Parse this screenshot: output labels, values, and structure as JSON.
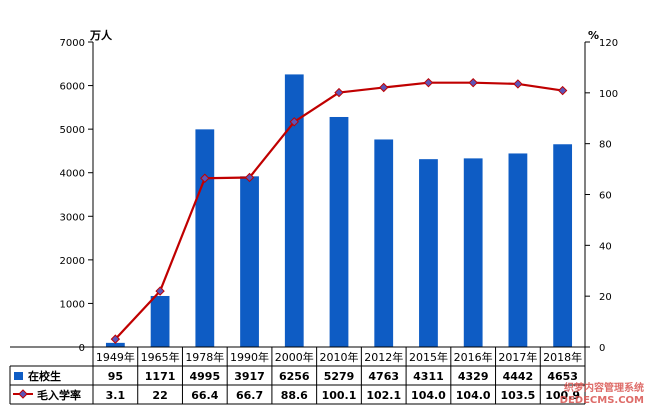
{
  "chart_data": {
    "type": "bar",
    "categories": [
      "1949年",
      "1965年",
      "1978年",
      "1990年",
      "2000年",
      "2010年",
      "2012年",
      "2015年",
      "2016年",
      "2017年",
      "2018年"
    ],
    "series": [
      {
        "name": "在校生",
        "type": "bar",
        "axis": "left",
        "values": [
          95,
          1171,
          4995,
          3917,
          6256,
          5279,
          4763,
          4311,
          4329,
          4442,
          4653
        ],
        "labels": [
          "95",
          "1171",
          "4995",
          "3917",
          "6256",
          "5279",
          "4763",
          "4311",
          "4329",
          "4442",
          "4653"
        ]
      },
      {
        "name": "毛入学率",
        "type": "line",
        "axis": "right",
        "values": [
          3.1,
          22,
          66.4,
          66.7,
          88.6,
          100.1,
          102.1,
          104.0,
          104.0,
          103.5,
          100.9
        ],
        "labels": [
          "3.1",
          "22",
          "66.4",
          "66.7",
          "88.6",
          "100.1",
          "102.1",
          "104.0",
          "104.0",
          "103.5",
          "100.9"
        ]
      }
    ],
    "y_left": {
      "unit": "万人",
      "ylim": [
        0,
        7000
      ],
      "ticks": [
        0,
        1000,
        2000,
        3000,
        4000,
        5000,
        6000,
        7000
      ]
    },
    "y_right": {
      "unit": "%",
      "ylim": [
        0,
        120
      ],
      "ticks": [
        0,
        20,
        40,
        60,
        80,
        100,
        120
      ]
    },
    "data_table": true,
    "grid": false,
    "colors": {
      "bar": "#0e5cc4",
      "line": "#c00000",
      "marker": "#5c55b8"
    }
  },
  "watermark": {
    "line1": "织梦内容管理系统",
    "line2": "DEDECMS.COM"
  }
}
